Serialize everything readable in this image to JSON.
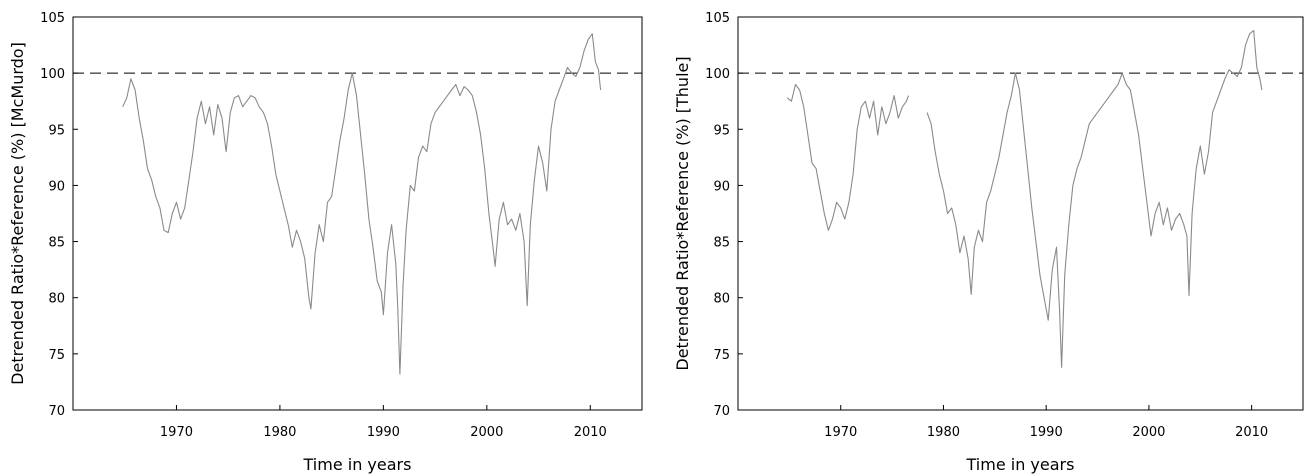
{
  "chart_data": [
    {
      "type": "line",
      "title": "",
      "xlabel": "Time in years",
      "ylabel": "Detrended Ratio*Reference (%) [McMurdo]",
      "xlim": [
        1960,
        2015
      ],
      "ylim": [
        70,
        105
      ],
      "xticks": [
        1970,
        1980,
        1990,
        2000,
        2010
      ],
      "yticks": [
        70,
        75,
        80,
        85,
        90,
        95,
        100,
        105
      ],
      "reference_line": 100,
      "line_color": "#8a8a8a",
      "grid": false,
      "series": [
        {
          "points": [
            [
              1964.8,
              97.0
            ],
            [
              1965.2,
              97.8
            ],
            [
              1965.6,
              99.5
            ],
            [
              1966.0,
              98.5
            ],
            [
              1966.4,
              96.0
            ],
            [
              1966.8,
              94.0
            ],
            [
              1967.2,
              91.5
            ],
            [
              1967.6,
              90.5
            ],
            [
              1968.0,
              89.0
            ],
            [
              1968.4,
              88.0
            ],
            [
              1968.8,
              86.0
            ],
            [
              1969.2,
              85.8
            ],
            [
              1969.6,
              87.5
            ],
            [
              1970.0,
              88.5
            ],
            [
              1970.4,
              87.0
            ],
            [
              1970.8,
              88.0
            ],
            [
              1971.2,
              90.5
            ],
            [
              1971.6,
              93.0
            ],
            [
              1972.0,
              96.0
            ],
            [
              1972.4,
              97.5
            ],
            [
              1972.8,
              95.5
            ],
            [
              1973.2,
              97.0
            ],
            [
              1973.6,
              94.5
            ],
            [
              1974.0,
              97.2
            ],
            [
              1974.4,
              96.0
            ],
            [
              1974.8,
              93.0
            ],
            [
              1975.2,
              96.5
            ],
            [
              1975.6,
              97.8
            ],
            [
              1976.0,
              98.0
            ],
            [
              1976.4,
              97.0
            ],
            [
              1976.8,
              97.5
            ],
            [
              1977.2,
              98.0
            ],
            [
              1977.6,
              97.8
            ],
            [
              1978.0,
              97.0
            ],
            [
              1978.4,
              96.5
            ],
            [
              1978.8,
              95.5
            ],
            [
              1979.2,
              93.5
            ],
            [
              1979.6,
              91.0
            ],
            [
              1980.0,
              89.5
            ],
            [
              1980.4,
              88.0
            ],
            [
              1980.8,
              86.5
            ],
            [
              1981.2,
              84.5
            ],
            [
              1981.6,
              86.0
            ],
            [
              1982.0,
              85.0
            ],
            [
              1982.4,
              83.5
            ],
            [
              1982.8,
              80.0
            ],
            [
              1983.0,
              79.0
            ],
            [
              1983.4,
              84.0
            ],
            [
              1983.8,
              86.5
            ],
            [
              1984.2,
              85.0
            ],
            [
              1984.6,
              88.5
            ],
            [
              1985.0,
              89.0
            ],
            [
              1985.4,
              91.5
            ],
            [
              1985.8,
              94.0
            ],
            [
              1986.2,
              96.0
            ],
            [
              1986.6,
              98.5
            ],
            [
              1987.0,
              100.0
            ],
            [
              1987.4,
              98.0
            ],
            [
              1987.8,
              94.5
            ],
            [
              1988.2,
              91.0
            ],
            [
              1988.6,
              87.0
            ],
            [
              1989.0,
              84.5
            ],
            [
              1989.4,
              81.5
            ],
            [
              1989.8,
              80.5
            ],
            [
              1990.0,
              78.5
            ],
            [
              1990.4,
              84.0
            ],
            [
              1990.8,
              86.5
            ],
            [
              1991.2,
              83.0
            ],
            [
              1991.4,
              79.0
            ],
            [
              1991.6,
              73.2
            ],
            [
              1991.9,
              81.0
            ],
            [
              1992.2,
              86.0
            ],
            [
              1992.6,
              90.0
            ],
            [
              1993.0,
              89.5
            ],
            [
              1993.4,
              92.5
            ],
            [
              1993.8,
              93.5
            ],
            [
              1994.2,
              93.0
            ],
            [
              1994.6,
              95.5
            ],
            [
              1995.0,
              96.5
            ],
            [
              1995.4,
              97.0
            ],
            [
              1995.8,
              97.5
            ],
            [
              1996.2,
              98.0
            ],
            [
              1996.6,
              98.5
            ],
            [
              1997.0,
              99.0
            ],
            [
              1997.4,
              98.0
            ],
            [
              1997.8,
              98.8
            ],
            [
              1998.2,
              98.5
            ],
            [
              1998.6,
              98.0
            ],
            [
              1999.0,
              96.5
            ],
            [
              1999.4,
              94.5
            ],
            [
              1999.8,
              91.5
            ],
            [
              2000.2,
              87.5
            ],
            [
              2000.6,
              84.5
            ],
            [
              2000.8,
              82.8
            ],
            [
              2001.2,
              87.0
            ],
            [
              2001.6,
              88.5
            ],
            [
              2002.0,
              86.5
            ],
            [
              2002.4,
              87.0
            ],
            [
              2002.8,
              86.0
            ],
            [
              2003.2,
              87.5
            ],
            [
              2003.6,
              85.0
            ],
            [
              2003.9,
              79.3
            ],
            [
              2004.2,
              86.5
            ],
            [
              2004.6,
              90.5
            ],
            [
              2005.0,
              93.5
            ],
            [
              2005.4,
              92.0
            ],
            [
              2005.8,
              89.5
            ],
            [
              2006.2,
              95.0
            ],
            [
              2006.6,
              97.5
            ],
            [
              2007.0,
              98.5
            ],
            [
              2007.4,
              99.5
            ],
            [
              2007.8,
              100.5
            ],
            [
              2008.2,
              100.0
            ],
            [
              2008.6,
              99.7
            ],
            [
              2009.0,
              100.5
            ],
            [
              2009.4,
              102.0
            ],
            [
              2009.8,
              103.0
            ],
            [
              2010.2,
              103.5
            ],
            [
              2010.5,
              101.0
            ],
            [
              2010.8,
              100.3
            ],
            [
              2011.0,
              98.5
            ]
          ]
        }
      ]
    },
    {
      "type": "line",
      "title": "",
      "xlabel": "Time in years",
      "ylabel": "Detrended Ratio*Reference (%) [Thule]",
      "xlim": [
        1960,
        2015
      ],
      "ylim": [
        70,
        105
      ],
      "xticks": [
        1970,
        1980,
        1990,
        2000,
        2010
      ],
      "yticks": [
        70,
        75,
        80,
        85,
        90,
        95,
        100,
        105
      ],
      "reference_line": 100,
      "line_color": "#8a8a8a",
      "grid": false,
      "series": [
        {
          "points": [
            [
              1964.8,
              97.8
            ],
            [
              1965.2,
              97.5
            ],
            [
              1965.6,
              99.0
            ],
            [
              1966.0,
              98.5
            ],
            [
              1966.4,
              97.0
            ],
            [
              1966.8,
              94.5
            ],
            [
              1967.2,
              92.0
            ],
            [
              1967.6,
              91.5
            ],
            [
              1968.0,
              89.5
            ],
            [
              1968.4,
              87.5
            ],
            [
              1968.8,
              86.0
            ],
            [
              1969.2,
              87.0
            ],
            [
              1969.6,
              88.5
            ],
            [
              1970.0,
              88.0
            ],
            [
              1970.4,
              87.0
            ],
            [
              1970.8,
              88.5
            ],
            [
              1971.2,
              91.0
            ],
            [
              1971.6,
              95.0
            ],
            [
              1972.0,
              97.0
            ],
            [
              1972.4,
              97.5
            ],
            [
              1972.8,
              96.0
            ],
            [
              1973.2,
              97.5
            ],
            [
              1973.6,
              94.5
            ],
            [
              1974.0,
              97.0
            ],
            [
              1974.4,
              95.5
            ],
            [
              1974.8,
              96.5
            ],
            [
              1975.2,
              98.0
            ],
            [
              1975.6,
              96.0
            ],
            [
              1976.0,
              97.0
            ],
            [
              1976.4,
              97.5
            ],
            [
              1976.6,
              98.0
            ],
            null,
            [
              1978.4,
              96.5
            ],
            [
              1978.8,
              95.5
            ],
            [
              1979.2,
              93.0
            ],
            [
              1979.6,
              91.0
            ],
            [
              1980.0,
              89.5
            ],
            [
              1980.4,
              87.5
            ],
            [
              1980.8,
              88.0
            ],
            [
              1981.2,
              86.5
            ],
            [
              1981.6,
              84.0
            ],
            [
              1982.0,
              85.5
            ],
            [
              1982.4,
              83.5
            ],
            [
              1982.7,
              80.3
            ],
            [
              1983.0,
              84.5
            ],
            [
              1983.4,
              86.0
            ],
            [
              1983.8,
              85.0
            ],
            [
              1984.2,
              88.5
            ],
            [
              1984.6,
              89.5
            ],
            [
              1985.0,
              91.0
            ],
            [
              1985.4,
              92.5
            ],
            [
              1985.8,
              94.5
            ],
            [
              1986.2,
              96.5
            ],
            [
              1986.6,
              98.0
            ],
            [
              1987.0,
              100.0
            ],
            [
              1987.4,
              98.5
            ],
            [
              1987.8,
              95.0
            ],
            [
              1988.2,
              91.5
            ],
            [
              1988.6,
              88.0
            ],
            [
              1989.0,
              85.0
            ],
            [
              1989.4,
              82.0
            ],
            [
              1989.8,
              80.0
            ],
            [
              1990.2,
              78.0
            ],
            [
              1990.6,
              82.5
            ],
            [
              1991.0,
              84.5
            ],
            [
              1991.3,
              79.0
            ],
            [
              1991.5,
              73.8
            ],
            [
              1991.8,
              82.0
            ],
            [
              1992.2,
              86.5
            ],
            [
              1992.6,
              90.0
            ],
            [
              1993.0,
              91.5
            ],
            [
              1993.4,
              92.5
            ],
            [
              1993.8,
              94.0
            ],
            [
              1994.2,
              95.5
            ],
            [
              1994.6,
              96.0
            ],
            [
              1995.0,
              96.5
            ],
            [
              1995.4,
              97.0
            ],
            [
              1995.8,
              97.5
            ],
            [
              1996.2,
              98.0
            ],
            [
              1996.6,
              98.5
            ],
            [
              1997.0,
              99.0
            ],
            [
              1997.4,
              100.0
            ],
            [
              1997.8,
              99.0
            ],
            [
              1998.2,
              98.5
            ],
            [
              1998.6,
              96.5
            ],
            [
              1999.0,
              94.5
            ],
            [
              1999.4,
              91.5
            ],
            [
              1999.8,
              88.5
            ],
            [
              2000.2,
              85.5
            ],
            [
              2000.6,
              87.5
            ],
            [
              2001.0,
              88.5
            ],
            [
              2001.4,
              86.5
            ],
            [
              2001.8,
              88.0
            ],
            [
              2002.2,
              86.0
            ],
            [
              2002.6,
              87.0
            ],
            [
              2003.0,
              87.5
            ],
            [
              2003.4,
              86.5
            ],
            [
              2003.7,
              85.5
            ],
            [
              2003.9,
              80.2
            ],
            [
              2004.2,
              87.5
            ],
            [
              2004.6,
              91.5
            ],
            [
              2005.0,
              93.5
            ],
            [
              2005.4,
              91.0
            ],
            [
              2005.8,
              93.0
            ],
            [
              2006.2,
              96.5
            ],
            [
              2006.6,
              97.5
            ],
            [
              2007.0,
              98.5
            ],
            [
              2007.4,
              99.5
            ],
            [
              2007.8,
              100.3
            ],
            [
              2008.2,
              100.0
            ],
            [
              2008.6,
              99.7
            ],
            [
              2009.0,
              100.5
            ],
            [
              2009.4,
              102.5
            ],
            [
              2009.8,
              103.5
            ],
            [
              2010.2,
              103.8
            ],
            [
              2010.5,
              100.5
            ],
            [
              2010.8,
              99.5
            ],
            [
              2011.0,
              98.5
            ]
          ]
        }
      ]
    }
  ]
}
